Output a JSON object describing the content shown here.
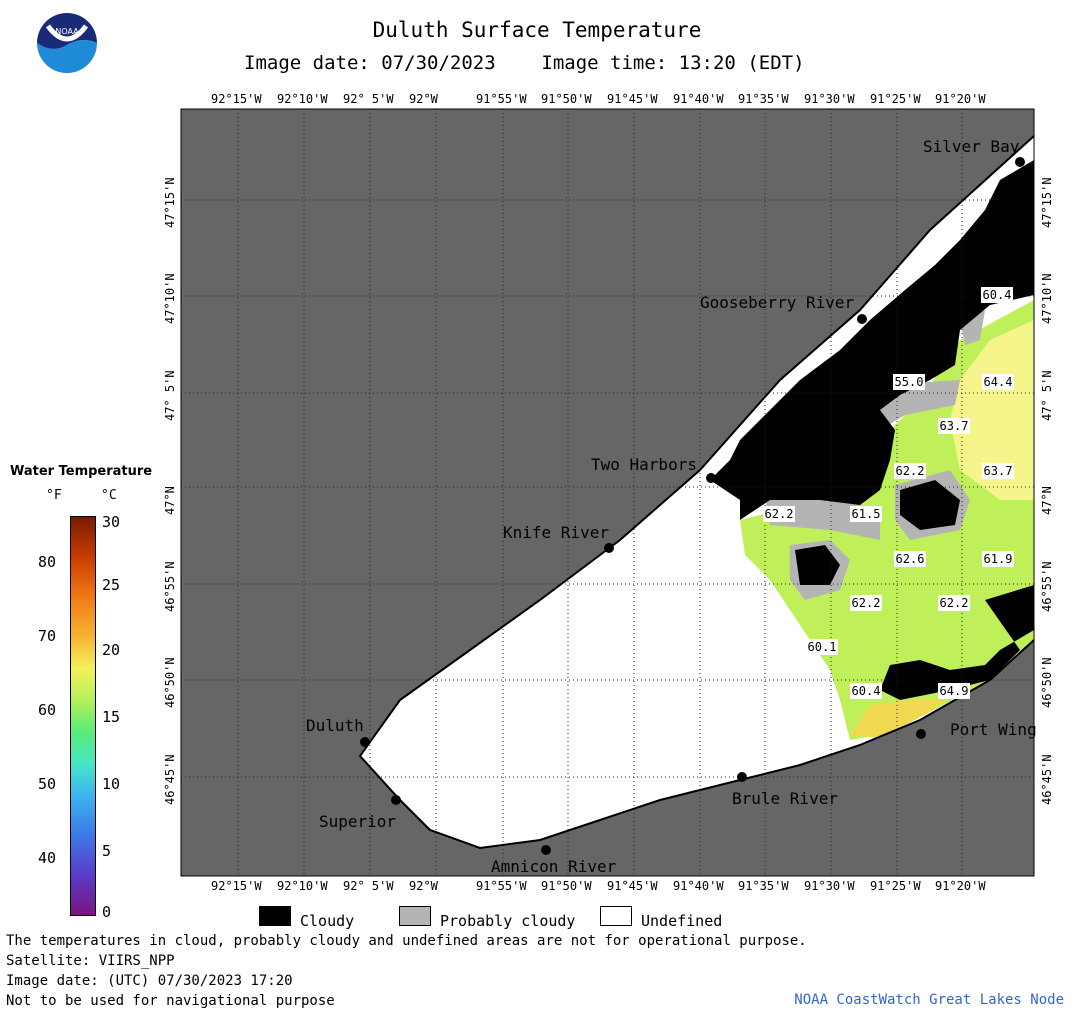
{
  "header": {
    "title": "Duluth Surface Temperature",
    "subtitle": "Image date: 07/30/2023    Image time: 13:20 (EDT)",
    "logo_text": "NOAA"
  },
  "map": {
    "lon_labels": [
      "92°15'W",
      "92°10'W",
      "92° 5'W",
      "92°W",
      "91°55'W",
      "91°50'W",
      "91°45'W",
      "91°40'W",
      "91°35'W",
      "91°30'W",
      "91°25'W",
      "91°20'W"
    ],
    "lat_labels": [
      "47°15'N",
      "47°10'N",
      "47° 5'N",
      "47°N",
      "46°55'N",
      "46°50'N",
      "46°45'N"
    ],
    "places": [
      "Silver Bay",
      "Gooseberry River",
      "Two Harbors",
      "Knife River",
      "Duluth",
      "Superior",
      "Amnicon River",
      "Brule River",
      "Port Wing"
    ],
    "temp_labels": [
      "60.4",
      "55.0",
      "64.4",
      "63.7",
      "63.7",
      "62.2",
      "62.2",
      "61.5",
      "62.6",
      "61.9",
      "62.2",
      "62.2",
      "60.1",
      "60.4",
      "64.9"
    ],
    "colors": {
      "land": "#666666",
      "cloudy": "#000000",
      "probably_cloudy": "#b4b4b4",
      "undefined": "#ffffff",
      "water_green": "#bff05a",
      "water_yellow": "#f5f58c"
    }
  },
  "scale": {
    "title": "Water Temperature",
    "unit_f": "°F",
    "unit_c": "°C",
    "f_ticks": [
      "80",
      "70",
      "60",
      "50",
      "40"
    ],
    "c_ticks": [
      "30",
      "25",
      "20",
      "15",
      "10",
      "5",
      "0"
    ]
  },
  "legend": {
    "cloudy": "Cloudy",
    "probably_cloudy": "Probably cloudy",
    "undefined": "Undefined"
  },
  "footer": {
    "line1": "The temperatures in cloud, probably cloudy and undefined areas are not for operational purpose.",
    "line2": "Satellite: VIIRS_NPP",
    "line3": "Image date: (UTC) 07/30/2023  17:20",
    "line4": "Not to be used for navigational purpose",
    "credit": "NOAA CoastWatch Great Lakes Node"
  }
}
